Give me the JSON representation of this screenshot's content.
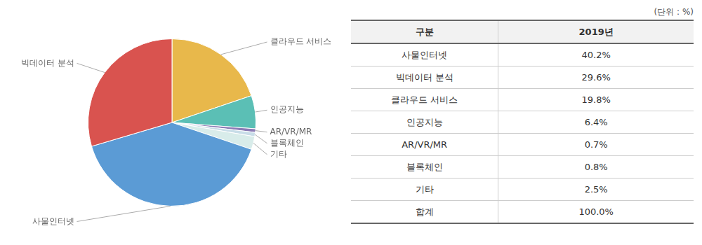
{
  "chart_data": {
    "type": "pie",
    "categories": [
      "클라우드 서비스",
      "인공지능",
      "AR/VR/MR",
      "블록체인",
      "기타",
      "사물인터넷",
      "빅데이터 분석"
    ],
    "values": [
      19.8,
      6.4,
      0.7,
      0.8,
      2.5,
      40.2,
      29.6
    ],
    "colors": [
      "#E8B84B",
      "#5BBFB5",
      "#8B7BB5",
      "#C8DDE8",
      "#D8ECEA",
      "#5B9BD5",
      "#D9534F"
    ],
    "annotations": [
      "(단위 : %)"
    ],
    "table": {
      "columns": [
        "구분",
        "2019년"
      ],
      "rows": [
        [
          "사물인터넷",
          "40.2%"
        ],
        [
          "빅데이터 분석",
          "29.6%"
        ],
        [
          "클라우드 서비스",
          "19.8%"
        ],
        [
          "인공지능",
          "6.4%"
        ],
        [
          "AR/VR/MR",
          "0.7%"
        ],
        [
          "블록체인",
          "0.8%"
        ],
        [
          "기타",
          "2.5%"
        ],
        [
          "합계",
          "100.0%"
        ]
      ]
    }
  }
}
